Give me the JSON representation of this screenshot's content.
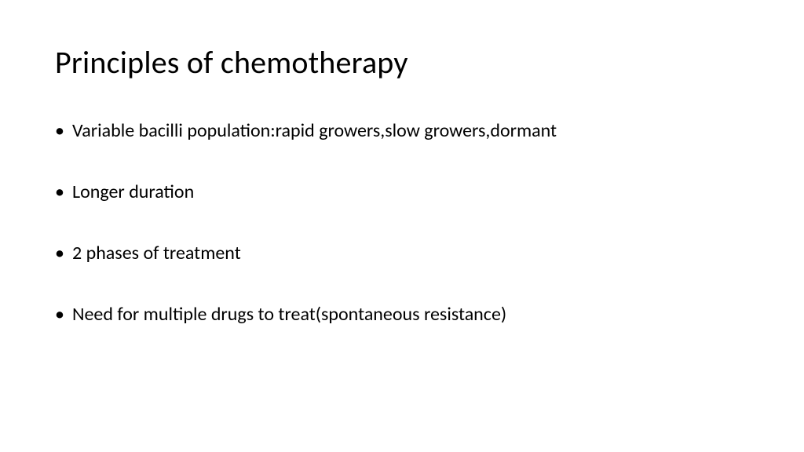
{
  "slide": {
    "title": "Principles of chemotherapy",
    "title_fontsize": 40,
    "title_color": "#000000",
    "body_fontsize": 24,
    "body_color": "#000000",
    "background_color": "#ffffff",
    "bullets": [
      "Variable bacilli population:rapid growers,slow growers,dormant",
      "Longer duration",
      "2 phases of treatment",
      "Need for multiple drugs to treat(spontaneous resistance)"
    ]
  }
}
